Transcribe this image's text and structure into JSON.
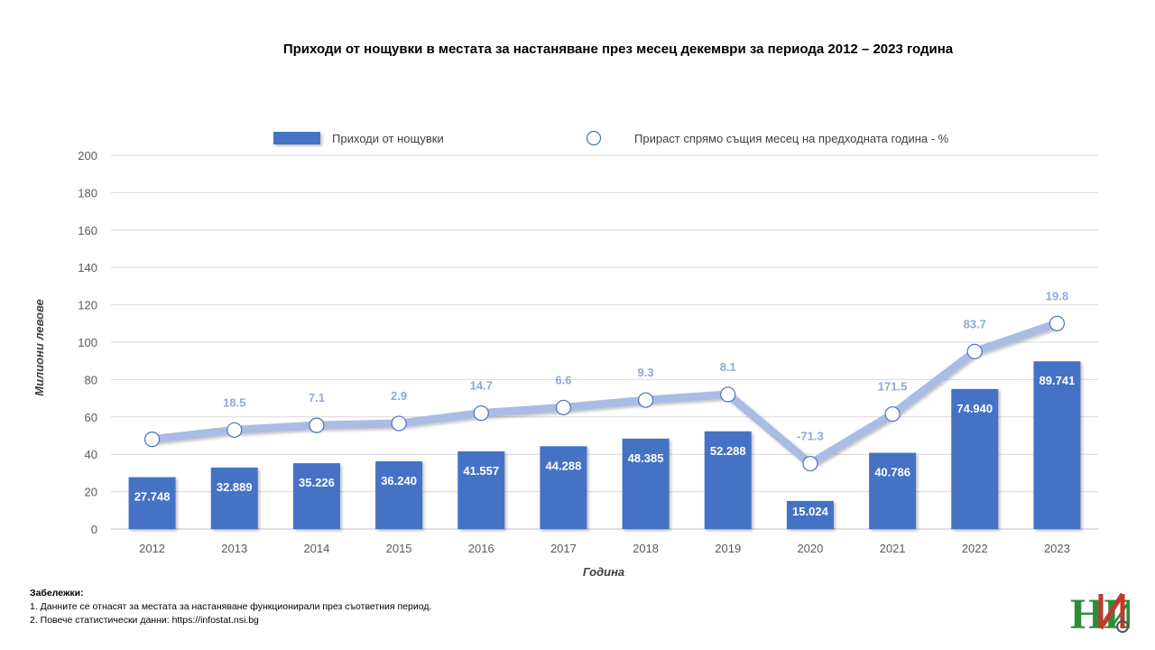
{
  "chart_data": {
    "type": "bar",
    "title": "Приходи от нощувки в местата за настаняване през месец декември за периода 2012 – 2023 година",
    "xlabel": "Година",
    "ylabel": "Милиони левове",
    "ylim": [
      0,
      200
    ],
    "yticks": [
      0,
      20,
      40,
      60,
      80,
      100,
      120,
      140,
      160,
      180,
      200
    ],
    "categories": [
      "2012",
      "2013",
      "2014",
      "2015",
      "2016",
      "2017",
      "2018",
      "2019",
      "2020",
      "2021",
      "2022",
      "2023"
    ],
    "legend_position": "top",
    "grid": true,
    "series": [
      {
        "name": "Приходи от нощувки",
        "kind": "bar",
        "color": "#4472C4",
        "values": [
          27.748,
          32.889,
          35.226,
          36.24,
          41.557,
          44.288,
          48.385,
          52.288,
          15.024,
          40.786,
          74.94,
          89.741
        ],
        "labels": [
          "27.748",
          "32.889",
          "35.226",
          "36.240",
          "41.557",
          "44.288",
          "48.385",
          "52.288",
          "15.024",
          "40.786",
          "74.940",
          "89.741"
        ]
      },
      {
        "name": "Прираст спрямо същия месец на предходната година - %",
        "kind": "line",
        "color": "#A9BCE3",
        "label_color": "#8EA9DB",
        "values": [
          48,
          53,
          55.5,
          56.5,
          62,
          65,
          69,
          72,
          35,
          61.5,
          95,
          110
        ],
        "labels": [
          "",
          "18.5",
          "7.1",
          "2.9",
          "14.7",
          "6.6",
          "9.3",
          "8.1",
          "-71.3",
          "171.5",
          "83.7",
          "19.8"
        ]
      }
    ]
  },
  "notes": {
    "title": "Забележки:",
    "items": [
      "1. Данните се отнасят за местата за настаняване функционирали през съответния период.",
      "2. Повече статистически данни: https://infostat.nsi.bg"
    ]
  },
  "logo": {
    "text": "НИ"
  }
}
